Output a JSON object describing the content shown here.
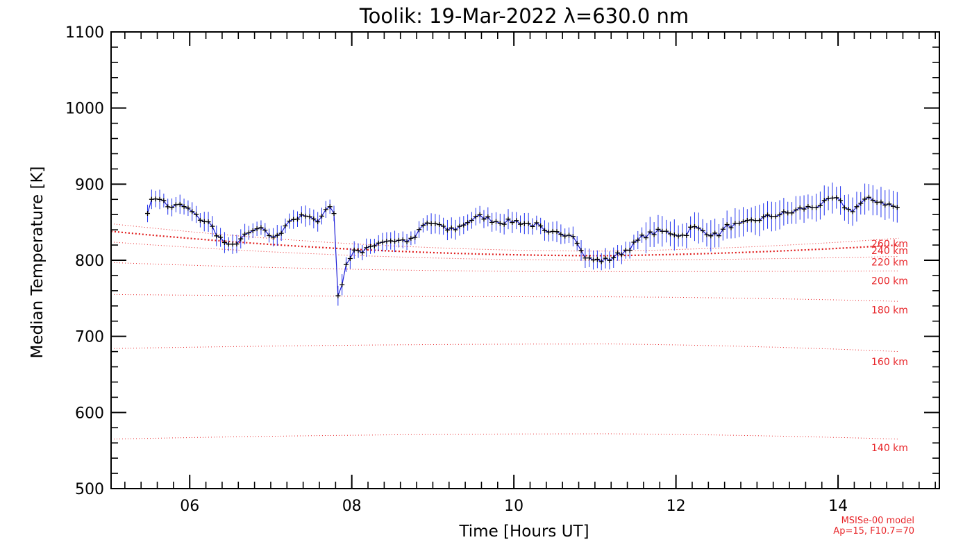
{
  "chart_data": {
    "type": "line",
    "title": "Toolik: 19-Mar-2022 λ=630.0 nm",
    "xlabel": "Time [Hours UT]",
    "ylabel": "Median Temperature [K]",
    "xlim": [
      5.03,
      15.25
    ],
    "ylim": [
      500,
      1100
    ],
    "xticks": [
      6,
      8,
      10,
      12,
      14
    ],
    "xtick_labels": [
      "06",
      "08",
      "10",
      "12",
      "14"
    ],
    "yticks": [
      500,
      600,
      700,
      800,
      900,
      1000,
      1100
    ],
    "ytick_labels": [
      "500",
      "600",
      "700",
      "800",
      "900",
      "1000",
      "1100"
    ],
    "x_minor_step": 0.2,
    "y_minor_step": 20,
    "grid": false,
    "model_note": [
      "MSISe-00 model",
      "Ap=15, F10.7=70"
    ],
    "colors": {
      "measured_line": "#1a1ad6",
      "error_bar": "#2233ee",
      "marker": "#000000",
      "model": "#e8262a",
      "model_thick": "#e01a1a",
      "axis": "#000000"
    },
    "measured": {
      "name": "Median Temperature",
      "key_points": [
        [
          5.48,
          865
        ],
        [
          5.55,
          882
        ],
        [
          5.65,
          882
        ],
        [
          5.72,
          870
        ],
        [
          5.9,
          872
        ],
        [
          6.0,
          866
        ],
        [
          6.1,
          856
        ],
        [
          6.25,
          848
        ],
        [
          6.35,
          832
        ],
        [
          6.5,
          816
        ],
        [
          6.6,
          826
        ],
        [
          6.75,
          836
        ],
        [
          6.85,
          842
        ],
        [
          7.0,
          832
        ],
        [
          7.1,
          830
        ],
        [
          7.2,
          852
        ],
        [
          7.35,
          856
        ],
        [
          7.45,
          858
        ],
        [
          7.55,
          850
        ],
        [
          7.65,
          862
        ],
        [
          7.72,
          872
        ],
        [
          7.78,
          862
        ],
        [
          7.82,
          750
        ],
        [
          7.88,
          770
        ],
        [
          7.95,
          800
        ],
        [
          8.05,
          818
        ],
        [
          8.12,
          808
        ],
        [
          8.25,
          820
        ],
        [
          8.4,
          826
        ],
        [
          8.55,
          826
        ],
        [
          8.75,
          826
        ],
        [
          8.9,
          848
        ],
        [
          9.05,
          848
        ],
        [
          9.15,
          840
        ],
        [
          9.3,
          842
        ],
        [
          9.45,
          852
        ],
        [
          9.6,
          858
        ],
        [
          9.75,
          852
        ],
        [
          9.9,
          850
        ],
        [
          10.0,
          852
        ],
        [
          10.15,
          848
        ],
        [
          10.3,
          846
        ],
        [
          10.4,
          834
        ],
        [
          10.55,
          836
        ],
        [
          10.75,
          834
        ],
        [
          10.83,
          812
        ],
        [
          10.9,
          802
        ],
        [
          11.0,
          800
        ],
        [
          11.15,
          800
        ],
        [
          11.3,
          808
        ],
        [
          11.45,
          818
        ],
        [
          11.6,
          832
        ],
        [
          11.8,
          838
        ],
        [
          11.95,
          836
        ],
        [
          12.1,
          832
        ],
        [
          12.2,
          844
        ],
        [
          12.35,
          838
        ],
        [
          12.5,
          832
        ],
        [
          12.65,
          846
        ],
        [
          12.8,
          846
        ],
        [
          12.95,
          852
        ],
        [
          13.1,
          856
        ],
        [
          13.25,
          860
        ],
        [
          13.4,
          862
        ],
        [
          13.55,
          868
        ],
        [
          13.7,
          870
        ],
        [
          13.85,
          876
        ],
        [
          13.95,
          882
        ],
        [
          14.05,
          874
        ],
        [
          14.15,
          864
        ],
        [
          14.25,
          872
        ],
        [
          14.35,
          880
        ],
        [
          14.5,
          878
        ],
        [
          14.6,
          874
        ],
        [
          14.7,
          870
        ],
        [
          14.77,
          868
        ]
      ]
    },
    "model_altitudes": [
      {
        "label": "140 km",
        "start": 565,
        "mid": 572,
        "end": 565,
        "label_y": 553
      },
      {
        "label": "160 km",
        "start": 684,
        "mid": 690,
        "end": 680,
        "label_y": 666
      },
      {
        "label": "180 km",
        "start": 755,
        "mid": 752,
        "end": 746,
        "label_y": 734
      },
      {
        "label": "200 km",
        "start": 797,
        "mid": 785,
        "end": 786,
        "label_y": 772
      },
      {
        "label": "220 km",
        "start": 824,
        "mid": 800,
        "end": 805,
        "label_y": 797
      },
      {
        "label": "240 km",
        "start": 838,
        "mid": 806,
        "end": 820,
        "label_y": 812,
        "thick": true
      },
      {
        "label": "260 km",
        "start": 848,
        "mid": 812,
        "end": 829,
        "label_y": 821
      }
    ]
  }
}
